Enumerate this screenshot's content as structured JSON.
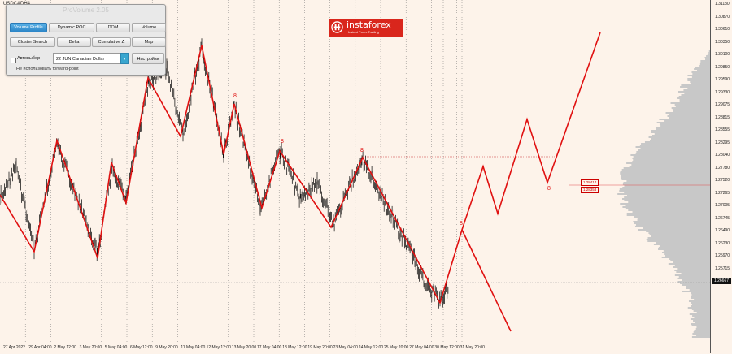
{
  "chart": {
    "symbol": "USDCADH4",
    "current_price": "1.26667",
    "level_high": "1.28414",
    "level_low": "1.28353",
    "wave_labels": [
      "8",
      "8",
      "8",
      "8",
      "8"
    ],
    "price_axis": [
      "1.31130",
      "1.30870",
      "1.30610",
      "1.30350",
      "1.30100",
      "1.29850",
      "1.29590",
      "1.29330",
      "1.29075",
      "1.28815",
      "1.28555",
      "1.28295",
      "1.28040",
      "1.27780",
      "1.27520",
      "1.27265",
      "1.27005",
      "1.26745",
      "1.26490",
      "1.26230",
      "1.25970",
      "1.25715"
    ],
    "date_axis": [
      "27 Apr 2022",
      "29 Apr 04:00",
      "2 May 12:00",
      "3 May 20:00",
      "5 May 04:00",
      "6 May 12:00",
      "9 May 20:00",
      "11 May 04:00",
      "12 May 12:00",
      "13 May 20:00",
      "17 May 04:00",
      "18 May 12:00",
      "19 May 20:00",
      "23 May 04:00",
      "24 May 12:00",
      "25 May 20:00",
      "27 May 04:00",
      "30 May 12:00",
      "31 May 20:00"
    ]
  },
  "panel": {
    "title": "ProVolume 2.05",
    "buttons": [
      "Volume Profile",
      "Dynamic POC",
      "DOM",
      "Volume",
      "Cluster Search",
      "Delta",
      "Cumulative Δ",
      "Map"
    ],
    "autoselect_label": "Автовыбор",
    "instrument": "22 JUN Canadian Dollar",
    "settings_label": "Настройки",
    "forward_point": "Не использовать forward-point"
  },
  "logo": {
    "name": "instaforex",
    "tagline": "Instant Forex Trading"
  },
  "colors": {
    "background": "#fdf3ea",
    "wave": "#e01010",
    "candles": "#000000",
    "profile": "#c8c8c8",
    "accent": "#2d86c7"
  }
}
